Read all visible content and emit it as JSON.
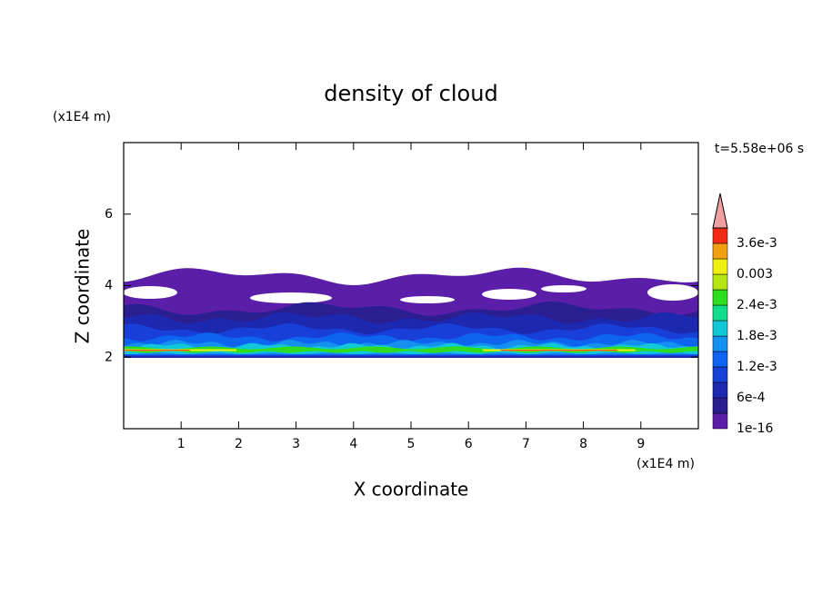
{
  "chart_data": {
    "type": "contour",
    "title": "density of cloud",
    "x_label": "X coordinate",
    "y_label": "Z coordinate",
    "x_unit": "(x1E4 m)",
    "y_unit": "(x1E4 m)",
    "time_label": "t=5.58e+06 s",
    "xlim": [
      0,
      10
    ],
    "ylim": [
      0,
      8
    ],
    "xticks": [
      1,
      2,
      3,
      4,
      5,
      6,
      7,
      8,
      9
    ],
    "yticks": [
      2,
      4,
      6
    ],
    "colorbar": {
      "levels": [
        1e-16,
        0.0003,
        0.0006,
        0.0009,
        0.0012,
        0.0015,
        0.0018,
        0.0021,
        0.0024,
        0.0027,
        0.003,
        0.0033,
        0.0036,
        0.0039
      ],
      "colors": [
        "#5a1ea8",
        "#2a1e90",
        "#1c28b0",
        "#1840d8",
        "#0c64f0",
        "#1490f0",
        "#10c8d8",
        "#10dc8c",
        "#30dc20",
        "#b4e614",
        "#f0f014",
        "#f0a010",
        "#f02a14"
      ],
      "over_color": "#f0a0a0",
      "ticks": [
        1e-16,
        {
          "value": 0.0006,
          "label": "6e-4"
        },
        {
          "value": 0.0012,
          "label": "1.2e-3"
        },
        {
          "value": 0.0018,
          "label": "1.8e-3"
        },
        {
          "value": 0.0024,
          "label": "2.4e-3"
        },
        0.003,
        {
          "value": 0.0036,
          "label": "3.6e-3"
        }
      ]
    }
  }
}
